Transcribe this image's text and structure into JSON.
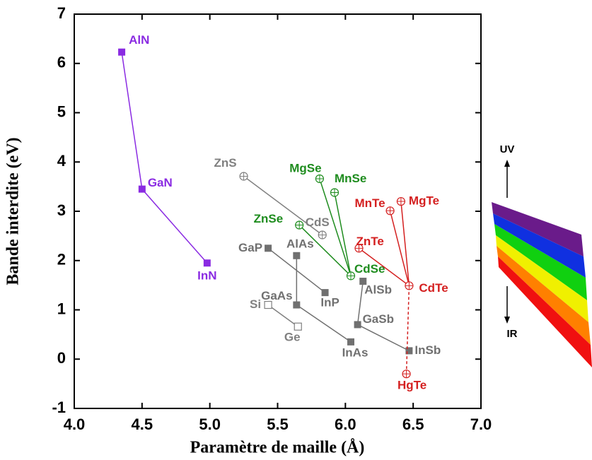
{
  "chart_data": {
    "type": "scatter",
    "x_label": "Paramètre de maille (Å)",
    "y_label": "Bande interdite (eV)",
    "xlim": [
      4.0,
      7.0
    ],
    "ylim": [
      -1,
      7
    ],
    "xticks": [
      {
        "value": 4.0,
        "label": "4.0"
      },
      {
        "value": 4.5,
        "label": "4.5"
      },
      {
        "value": 5.0,
        "label": "5.0"
      },
      {
        "value": 5.5,
        "label": "5.5"
      },
      {
        "value": 6.0,
        "label": "6.0"
      },
      {
        "value": 6.5,
        "label": "6.5"
      },
      {
        "value": 7.0,
        "label": "7.0"
      }
    ],
    "yticks": [
      -1,
      0,
      1,
      2,
      3,
      4,
      5,
      6,
      7
    ],
    "annotations": [
      "UV",
      "IR"
    ],
    "series": [
      {
        "color": "#8a2be2",
        "marker": "square",
        "connect": "chain",
        "labels": [
          "AlN",
          "GaN",
          "InN"
        ],
        "x": [
          4.35,
          4.5,
          4.98
        ],
        "values": [
          6.23,
          3.45,
          1.95
        ]
      },
      {
        "color": "#808080",
        "marker": "circle-plus",
        "connect": "chain",
        "labels": [
          "ZnS",
          "CdS"
        ],
        "x": [
          5.25,
          5.83
        ],
        "values": [
          3.71,
          2.52
        ]
      },
      {
        "color": "#707070",
        "marker": "square",
        "connect": "chain",
        "labels": [
          "GaP",
          "InP"
        ],
        "x": [
          5.43,
          5.85
        ],
        "values": [
          2.25,
          1.35
        ]
      },
      {
        "color": "#707070",
        "marker": "square",
        "connect": "chain",
        "labels": [
          "AlAs",
          "GaAs",
          "InAs"
        ],
        "x": [
          5.64,
          5.64,
          6.04
        ],
        "values": [
          2.1,
          1.1,
          0.35
        ]
      },
      {
        "color": "#707070",
        "marker": "square",
        "connect": "chain",
        "labels": [
          "AlSb",
          "GaSb",
          "InSb"
        ],
        "x": [
          6.13,
          6.09,
          6.47
        ],
        "values": [
          1.58,
          0.7,
          0.17
        ]
      },
      {
        "color": "#808080",
        "marker": "open-square",
        "connect": "chain",
        "labels": [
          "Si",
          "Ge"
        ],
        "x": [
          5.43,
          5.65
        ],
        "values": [
          1.1,
          0.66
        ]
      },
      {
        "color": "#1e8c1e",
        "marker": "circle-plus",
        "connect": "star",
        "labels": [
          "ZnSe",
          "MgSe",
          "MnSe",
          "CdSe"
        ],
        "x": [
          5.66,
          5.81,
          5.92,
          6.04
        ],
        "values": [
          2.72,
          3.66,
          3.38,
          1.69
        ]
      },
      {
        "color": "#d42020",
        "marker": "circle-plus",
        "connect": "star",
        "spoke_styles": [
          "solid",
          "solid",
          "solid",
          "dashed"
        ],
        "labels": [
          "MgTe",
          "MnTe",
          "ZnTe",
          "HgTe",
          "CdTe"
        ],
        "x": [
          6.41,
          6.33,
          6.1,
          6.45,
          6.47
        ],
        "values": [
          3.2,
          3.01,
          2.25,
          -0.3,
          1.49
        ]
      }
    ]
  }
}
